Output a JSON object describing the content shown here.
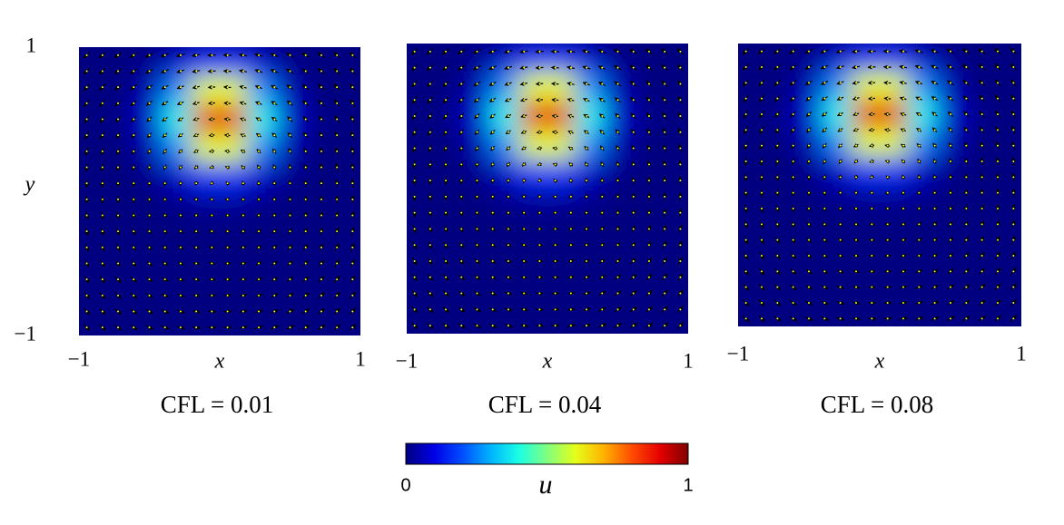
{
  "chart_data": [
    {
      "type": "heatmap",
      "caption": "CFL = 0.01",
      "xlabel": "x",
      "ylabel": "y",
      "xlim": [
        -1,
        1
      ],
      "ylim": [
        -1,
        1
      ],
      "xticks": [
        {
          "value": -1,
          "label": "−1"
        },
        1
      ],
      "yticks": [
        {
          "value": -1,
          "label": "−1"
        },
        1
      ],
      "x": [
        -0.9,
        -0.7,
        -0.5,
        -0.3,
        -0.1,
        0.1,
        0.3,
        0.5,
        0.7,
        0.9
      ],
      "y": [
        0.9,
        0.7,
        0.5,
        0.3,
        0.1,
        -0.1,
        -0.3,
        -0.5,
        -0.7,
        -0.9
      ],
      "values": [
        [
          0,
          0,
          0.01,
          0.07,
          0.17,
          0.17,
          0.07,
          0.01,
          0,
          0
        ],
        [
          0,
          0,
          0.05,
          0.26,
          0.6,
          0.6,
          0.26,
          0.05,
          0,
          0
        ],
        [
          0,
          0.01,
          0.08,
          0.39,
          0.9,
          0.9,
          0.39,
          0.08,
          0.01,
          0
        ],
        [
          0,
          0,
          0.05,
          0.26,
          0.6,
          0.6,
          0.26,
          0.05,
          0,
          0
        ],
        [
          0,
          0,
          0.01,
          0.07,
          0.17,
          0.17,
          0.07,
          0.01,
          0,
          0
        ],
        [
          0,
          0,
          0,
          0.01,
          0.02,
          0.02,
          0.01,
          0,
          0,
          0
        ],
        [
          0,
          0,
          0,
          0,
          0,
          0,
          0,
          0,
          0,
          0
        ],
        [
          0,
          0,
          0,
          0,
          0,
          0,
          0,
          0,
          0,
          0
        ],
        [
          0,
          0,
          0,
          0,
          0,
          0,
          0,
          0,
          0,
          0
        ],
        [
          0,
          0,
          0,
          0,
          0,
          0,
          0,
          0,
          0,
          0
        ]
      ]
    },
    {
      "type": "heatmap",
      "caption": "CFL = 0.04",
      "xlabel": "x",
      "xlim": [
        -1,
        1
      ],
      "ylim": [
        -1,
        1
      ],
      "xticks": [
        {
          "value": -1,
          "label": "−1"
        },
        1
      ],
      "x": [
        -0.9,
        -0.7,
        -0.5,
        -0.3,
        -0.1,
        0.1,
        0.3,
        0.5,
        0.7,
        0.9
      ],
      "y": [
        0.9,
        0.7,
        0.5,
        0.3,
        0.1,
        -0.1,
        -0.3,
        -0.5,
        -0.7,
        -0.9
      ],
      "values": [
        [
          0,
          0,
          0.01,
          0.07,
          0.17,
          0.17,
          0.07,
          0.01,
          0,
          0
        ],
        [
          0,
          0,
          0.05,
          0.26,
          0.6,
          0.6,
          0.26,
          0.05,
          0,
          0
        ],
        [
          0,
          0.01,
          0.08,
          0.39,
          0.9,
          0.9,
          0.39,
          0.08,
          0.01,
          0
        ],
        [
          0,
          0,
          0.05,
          0.26,
          0.6,
          0.6,
          0.26,
          0.05,
          0,
          0
        ],
        [
          0,
          0,
          0.01,
          0.07,
          0.17,
          0.17,
          0.07,
          0.01,
          0,
          0
        ],
        [
          0,
          0,
          0,
          0.01,
          0.02,
          0.02,
          0.01,
          0,
          0,
          0
        ],
        [
          0,
          0,
          0,
          0,
          0,
          0,
          0,
          0,
          0,
          0
        ],
        [
          0,
          0,
          0,
          0,
          0,
          0,
          0,
          0,
          0,
          0
        ],
        [
          0,
          0,
          0,
          0,
          0,
          0,
          0,
          0,
          0,
          0
        ],
        [
          0,
          0,
          0,
          0,
          0,
          0,
          0,
          0,
          0,
          0
        ]
      ]
    },
    {
      "type": "heatmap",
      "caption": "CFL = 0.08",
      "xlabel": "x",
      "xlim": [
        -1,
        1
      ],
      "ylim": [
        -1,
        1
      ],
      "xticks": [
        {
          "value": -1,
          "label": "−1"
        },
        1
      ],
      "x": [
        -0.9,
        -0.7,
        -0.5,
        -0.3,
        -0.1,
        0.1,
        0.3,
        0.5,
        0.7,
        0.9
      ],
      "y": [
        0.9,
        0.7,
        0.5,
        0.3,
        0.1,
        -0.1,
        -0.3,
        -0.5,
        -0.7,
        -0.9
      ],
      "values": [
        [
          0,
          0,
          0.01,
          0.07,
          0.17,
          0.17,
          0.07,
          0.01,
          0,
          0
        ],
        [
          0,
          0,
          0.05,
          0.26,
          0.6,
          0.6,
          0.26,
          0.05,
          0,
          0
        ],
        [
          0,
          0.01,
          0.08,
          0.39,
          0.9,
          0.9,
          0.39,
          0.08,
          0.01,
          0
        ],
        [
          0,
          0,
          0.05,
          0.26,
          0.6,
          0.6,
          0.26,
          0.05,
          0,
          0
        ],
        [
          0,
          0,
          0.01,
          0.07,
          0.17,
          0.17,
          0.07,
          0.01,
          0,
          0
        ],
        [
          0,
          0,
          0,
          0.01,
          0.02,
          0.02,
          0.01,
          0,
          0,
          0
        ],
        [
          0,
          0,
          0,
          0,
          0,
          0,
          0,
          0,
          0,
          0
        ],
        [
          0,
          0,
          0,
          0,
          0,
          0,
          0,
          0,
          0,
          0
        ],
        [
          0,
          0,
          0,
          0,
          0,
          0,
          0,
          0,
          0,
          0
        ],
        [
          0,
          0,
          0,
          0,
          0,
          0,
          0,
          0,
          0,
          0
        ]
      ]
    }
  ],
  "colorbar": {
    "label": "u",
    "lim": [
      0,
      1
    ],
    "ticks": [
      0,
      1
    ]
  }
}
